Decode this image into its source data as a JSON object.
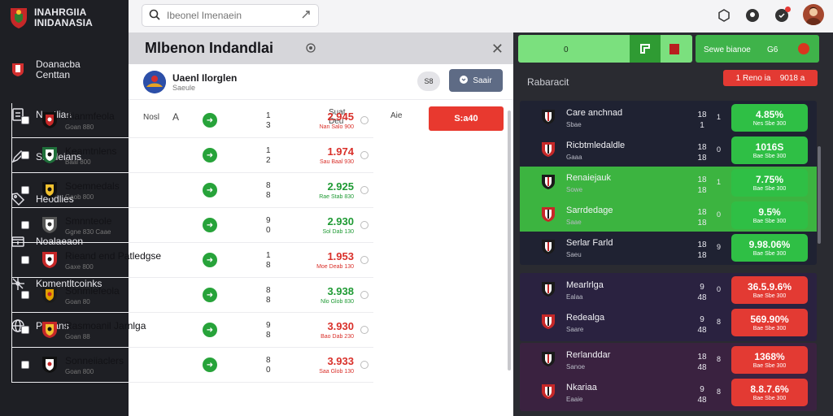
{
  "app": {
    "title_line1": "INAHRGIIA",
    "title_line2": "INIDANASIA"
  },
  "sidebar": {
    "items": [
      {
        "label": "Doanacba Centtan",
        "icon": "shield-flag-icon"
      },
      {
        "label": "Noatlian",
        "icon": "document-icon"
      },
      {
        "label": "Smaleians",
        "icon": "pencil-icon"
      },
      {
        "label": "Heodlies",
        "icon": "tag-icon"
      },
      {
        "label": "Noalaeaon",
        "icon": "folder-icon"
      },
      {
        "label": "Kpmentltcoinks",
        "icon": "network-icon"
      },
      {
        "label": "Porians",
        "icon": "globe-icon"
      }
    ]
  },
  "search": {
    "placeholder": "Ibeonel Imenaein"
  },
  "panel": {
    "title": "Mlbenon Indandlai",
    "user": {
      "name": "Uaenl Ilorglen",
      "sub": "Saeule"
    },
    "chip": "S8",
    "action_label": "Saair",
    "columns": {
      "c1": "Nosl",
      "c1b": "A",
      "c2a": "Suat",
      "c2b": "Deu",
      "c3": "Aie",
      "odds": "S:a40"
    },
    "rows": [
      {
        "name": "Rianmfeola",
        "meta": "Goan 880",
        "n1": "1",
        "n2": "3",
        "odd": "2.945",
        "odd_sub": "Nan Salo 900",
        "odd_color": "red"
      },
      {
        "name": "Keamtnlens",
        "meta": "Baal 800",
        "n1": "1",
        "n2": "2",
        "odd": "1.974",
        "odd_sub": "Sau Baal 930",
        "odd_color": "red"
      },
      {
        "name": "Soemnedals",
        "meta": "Gaob 800",
        "n1": "8",
        "n2": "8",
        "odd": "2.925",
        "odd_sub": "Rae Stab 830",
        "odd_color": "green"
      },
      {
        "name": "Smnnteole",
        "meta": "Ggne 830 Caae",
        "n1": "9",
        "n2": "0",
        "odd": "2.930",
        "odd_sub": "Sol Dab 130",
        "odd_color": "green"
      },
      {
        "name": "Rieand end Patledgse",
        "meta": "Gaxe 800",
        "n1": "1",
        "n2": "8",
        "odd": "1.953",
        "odd_sub": "Moe Deab 130",
        "odd_color": "red"
      },
      {
        "name": "Sonmlefeola",
        "meta": "Goan 80",
        "n1": "8",
        "n2": "8",
        "odd": "3.938",
        "odd_sub": "Nlo Glob 830",
        "odd_color": "green"
      },
      {
        "name": "Rasmoanil Jarnlga",
        "meta": "Goan 88",
        "n1": "9",
        "n2": "8",
        "odd": "3.930",
        "odd_sub": "Bao Dab 230",
        "odd_color": "red"
      },
      {
        "name": "Sonneiiaclers",
        "meta": "Goan 800",
        "n1": "8",
        "n2": "0",
        "odd": "3.933",
        "odd_sub": "Saa Glob 130",
        "odd_color": "red"
      }
    ]
  },
  "right": {
    "top_green_label": "0",
    "top_green_icon": "flag-icon",
    "top_second_label": "Sewe bianoe",
    "top_second_value": "G6",
    "section_label": "Rabaracit",
    "pill_a": "1 Reno ia",
    "pill_b": "9018 a",
    "cards": [
      {
        "rows": [
          {
            "name": "Care anchnad",
            "meta": "Sbae",
            "n1a": "18",
            "n1b": "1",
            "n2": "1",
            "odd": "4.85%",
            "odd_sub": "Nes Sbe 300",
            "box": "green",
            "highlight": false
          },
          {
            "name": "Ricbtmledaldle",
            "meta": "Gaaa",
            "n1a": "18",
            "n1b": "18",
            "n2": "0",
            "odd": "1016S",
            "odd_sub": "Bae Sbe 300",
            "box": "green",
            "highlight": false
          },
          {
            "name": "Renaiejauk",
            "meta": "Sowe",
            "n1a": "18",
            "n1b": "18",
            "n2": "1",
            "odd": "7.75%",
            "odd_sub": "Bae Sbe 300",
            "box": "green",
            "highlight": true
          },
          {
            "name": "Sarrdedage",
            "meta": "Saae",
            "n1a": "18",
            "n1b": "18",
            "n2": "0",
            "odd": "9.5%",
            "odd_sub": "Bae Sbe 300",
            "box": "green",
            "highlight": true
          },
          {
            "name": "Serlar Farld",
            "meta": "Saeu",
            "n1a": "18",
            "n1b": "18",
            "n2": "9",
            "odd": "9.98.06%",
            "odd_sub": "Bae Sbe 300",
            "box": "green",
            "highlight": false
          }
        ]
      },
      {
        "rows": [
          {
            "name": "Mearlrlga",
            "meta": "Ealaa",
            "n1a": "9",
            "n1b": "48",
            "n2": "0",
            "odd": "36.5.9.6%",
            "odd_sub": "Bae Sbe 300",
            "box": "red",
            "highlight": false
          },
          {
            "name": "Redealga",
            "meta": "Saare",
            "n1a": "9",
            "n1b": "48",
            "n2": "8",
            "odd": "569.90%",
            "odd_sub": "Bae Sbe 300",
            "box": "red",
            "highlight": false
          }
        ]
      },
      {
        "rows": [
          {
            "name": "Rerlanddar",
            "meta": "Sanoe",
            "n1a": "18",
            "n1b": "48",
            "n2": "8",
            "odd": "1368%",
            "odd_sub": "Bae Sbe 300",
            "box": "red",
            "highlight": false
          },
          {
            "name": "Nkariaa",
            "meta": "Eaaie",
            "n1a": "9",
            "n1b": "48",
            "n2": "8",
            "odd": "8.8.7.6%",
            "odd_sub": "Bae Sbe 300",
            "box": "red",
            "highlight": false
          }
        ]
      }
    ]
  },
  "colors": {
    "accent_red": "#e8392f",
    "accent_green": "#2fbf45",
    "sidebar_bg": "#1e1f24",
    "dark_panel": "#2a2b31"
  }
}
